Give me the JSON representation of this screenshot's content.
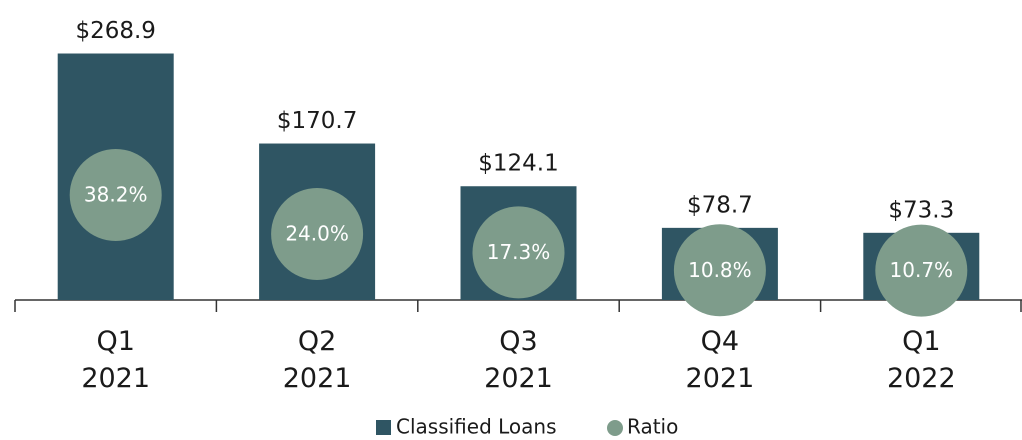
{
  "chart_data": {
    "type": "bar",
    "categories": [
      [
        "Q1",
        "2021"
      ],
      [
        "Q2",
        "2021"
      ],
      [
        "Q3",
        "2021"
      ],
      [
        "Q4",
        "2021"
      ],
      [
        "Q1",
        "2022"
      ]
    ],
    "series": [
      {
        "name": "Classified Loans",
        "color": "#2f5563",
        "values": [
          268.9,
          170.7,
          124.1,
          78.7,
          73.3
        ],
        "value_labels": [
          "$268.9",
          "$170.7",
          "$124.1",
          "$78.7",
          "$73.3"
        ]
      },
      {
        "name": "Ratio",
        "color": "#7e9c8b",
        "axis": "y2",
        "values": [
          38.2,
          24.0,
          17.3,
          10.8,
          10.7
        ],
        "value_labels": [
          "38.2%",
          "24.0%",
          "17.3%",
          "10.8%",
          "10.7%"
        ]
      }
    ],
    "ylim": [
      0,
      300
    ],
    "y2lim": [
      0,
      100
    ]
  }
}
